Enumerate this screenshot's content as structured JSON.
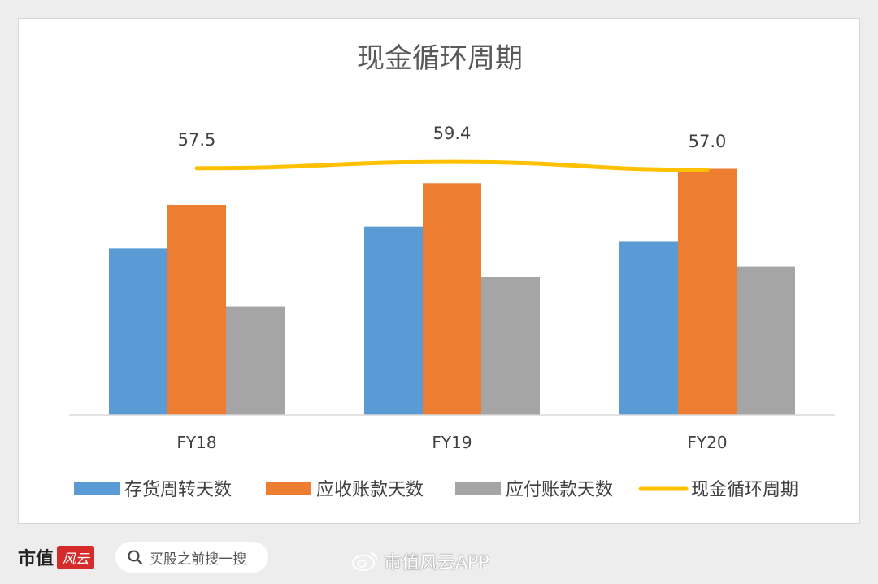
{
  "chart_data": {
    "type": "bar+line",
    "title": "现金循环周期",
    "categories": [
      "FY18",
      "FY19",
      "FY20"
    ],
    "series": [
      {
        "name": "存货周转天数",
        "type": "bar",
        "color": "#5b9bd5",
        "values": [
          46,
          52,
          48
        ]
      },
      {
        "name": "应收账款天数",
        "type": "bar",
        "color": "#ed7d31",
        "values": [
          58,
          64,
          68
        ]
      },
      {
        "name": "应付账款天数",
        "type": "bar",
        "color": "#a5a5a5",
        "values": [
          30,
          38,
          41
        ]
      },
      {
        "name": "现金循环周期",
        "type": "line",
        "color": "#ffc000",
        "values": [
          57.5,
          59.4,
          57.0
        ],
        "labels": [
          "57.5",
          "59.4",
          "57.0"
        ]
      }
    ],
    "ylim": [
      0,
      78
    ],
    "legend_position": "bottom",
    "grid": false
  },
  "footer": {
    "brand": "市值",
    "brand_seal": "风云",
    "search_placeholder": "买股之前搜一搜",
    "weibo_watermark": "市值风云APP"
  }
}
